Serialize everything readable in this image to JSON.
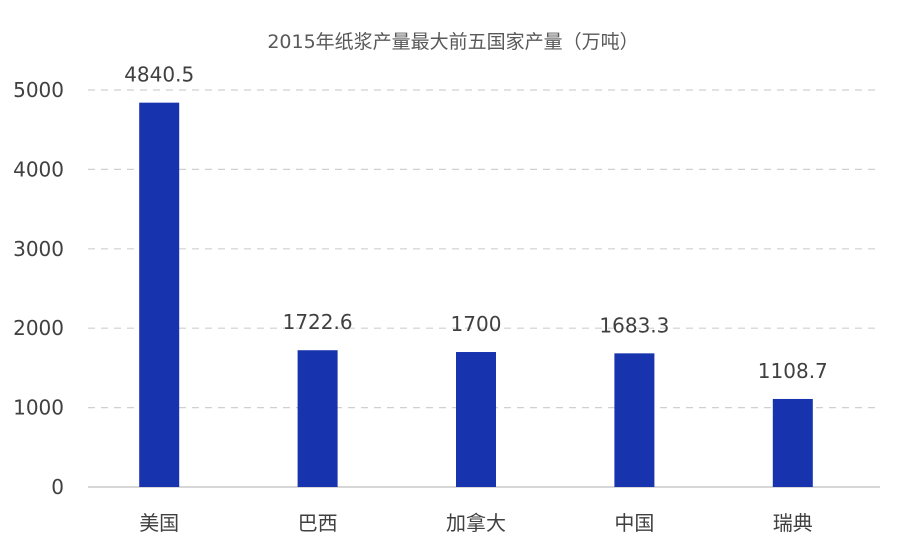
{
  "chart_data": {
    "type": "bar",
    "title": "2015年纸浆产量最大前五国家产量（万吨）",
    "categories": [
      "美国",
      "巴西",
      "加拿大",
      "中国",
      "瑞典"
    ],
    "values": [
      4840.5,
      1722.6,
      1700,
      1683.3,
      1108.7
    ],
    "value_labels": [
      "4840.5",
      "1722.6",
      "1700",
      "1683.3",
      "1108.7"
    ],
    "yticks": [
      "0",
      "1000",
      "2000",
      "3000",
      "4000",
      "5000"
    ],
    "ylim": [
      0,
      5000
    ],
    "xlabel": "",
    "ylabel": "",
    "grid": true,
    "legend": "none",
    "bar_color": "#1733ad"
  }
}
